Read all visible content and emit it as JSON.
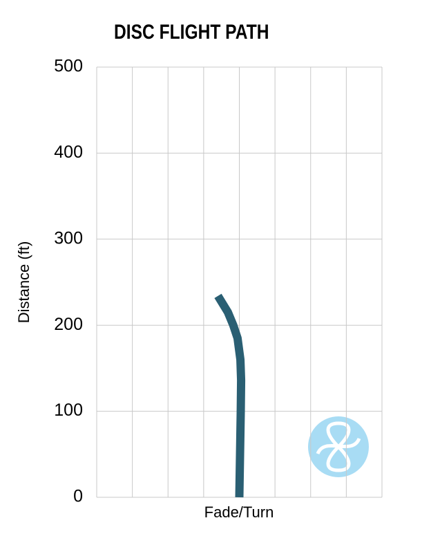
{
  "chart_data": {
    "type": "line",
    "title": "DISC FLIGHT PATH",
    "xlabel": "Fade/Turn",
    "ylabel": "Distance (ft)",
    "x": [
      0,
      0.02,
      0.04,
      0.05,
      0.03,
      -0.05,
      -0.17,
      -0.32,
      -0.6
    ],
    "values": [
      0,
      50,
      100,
      136,
      160,
      185,
      200,
      215,
      234
    ],
    "color": "#2a5f73",
    "xlim": [
      -4,
      4
    ],
    "xticks": [
      -4,
      -3,
      -2,
      -1,
      0,
      1,
      2,
      3,
      4
    ],
    "ylim": [
      0,
      500
    ],
    "yticks": [
      0,
      100,
      200,
      300,
      400,
      500
    ],
    "grid": true
  }
}
